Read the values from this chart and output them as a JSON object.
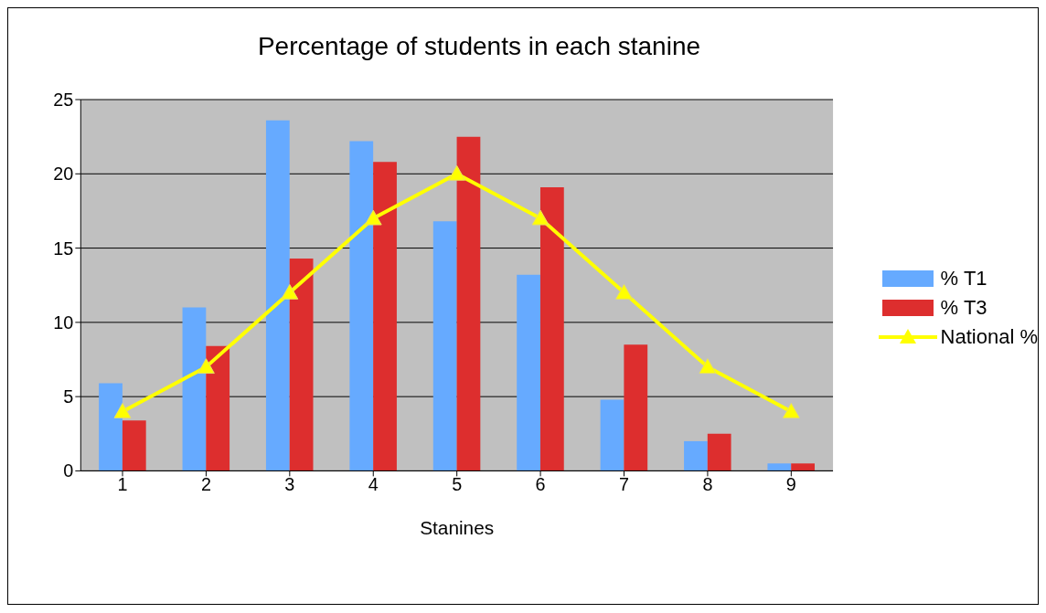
{
  "chart_data": {
    "type": "bar",
    "title": "Percentage of students in each stanine",
    "xlabel": "Stanines",
    "categories": [
      "1",
      "2",
      "3",
      "4",
      "5",
      "6",
      "7",
      "8",
      "9"
    ],
    "series": [
      {
        "name": "% T1",
        "color": "#66aaff",
        "values": [
          5.9,
          11.0,
          23.6,
          22.2,
          16.8,
          13.2,
          4.8,
          2.0,
          0.5
        ]
      },
      {
        "name": "% T3",
        "color": "#dd2e2e",
        "values": [
          3.4,
          8.4,
          14.3,
          20.8,
          22.5,
          19.1,
          8.5,
          2.5,
          0.5
        ]
      },
      {
        "name": "National %",
        "type": "line",
        "color": "#ffff00",
        "values": [
          4,
          7,
          12,
          17,
          20,
          17,
          12,
          7,
          4
        ]
      }
    ],
    "ylim": [
      0,
      25
    ],
    "yticks": [
      0,
      5,
      10,
      15,
      20,
      25
    ],
    "grid": "y",
    "legend": "right",
    "marker": "triangle",
    "line_style": "solid"
  }
}
